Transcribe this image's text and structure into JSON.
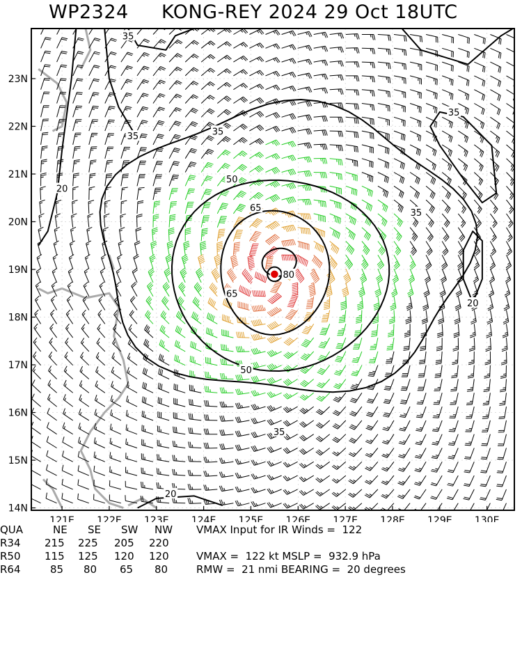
{
  "title": {
    "storm_id": "WP2324",
    "headline": "KONG-REY 2024 29 Oct 18UTC"
  },
  "map": {
    "lat_labels": [
      "14N",
      "15N",
      "16N",
      "17N",
      "18N",
      "19N",
      "20N",
      "21N",
      "22N",
      "23N"
    ],
    "lon_labels": [
      "121E",
      "122E",
      "123E",
      "124E",
      "125E",
      "126E",
      "127E",
      "128E",
      "129E",
      "130E"
    ],
    "center": {
      "lat": 18.9,
      "lon": 125.5
    },
    "wind_colors": {
      "low": "#000000",
      "gale": "#22cc22",
      "storm": "#e0a030",
      "strong": "#e07040",
      "hurricane": "#e04040",
      "center_dot": "#e00000"
    },
    "contour_labels": [
      {
        "value": "35",
        "lat": 23.9,
        "lon": 122.4
      },
      {
        "value": "35",
        "lat": 21.8,
        "lon": 122.5
      },
      {
        "value": "35",
        "lat": 22.3,
        "lon": 129.3
      },
      {
        "value": "35",
        "lat": 21.9,
        "lon": 124.3
      },
      {
        "value": "35",
        "lat": 20.2,
        "lon": 128.5
      },
      {
        "value": "35",
        "lat": 15.6,
        "lon": 125.6
      },
      {
        "value": "50",
        "lat": 20.9,
        "lon": 124.6
      },
      {
        "value": "50",
        "lat": 16.9,
        "lon": 124.9
      },
      {
        "value": "65",
        "lat": 20.3,
        "lon": 125.1
      },
      {
        "value": "65",
        "lat": 18.5,
        "lon": 124.6
      },
      {
        "value": "80",
        "lat": 18.9,
        "lon": 125.8
      },
      {
        "value": "20",
        "lat": 20.7,
        "lon": 121.0
      },
      {
        "value": "20",
        "lat": 18.3,
        "lon": 129.7
      },
      {
        "value": "20",
        "lat": 14.3,
        "lon": 123.3
      }
    ]
  },
  "stats": {
    "header": [
      "QUA",
      "NE",
      "SE",
      "SW",
      "NW"
    ],
    "rows": [
      {
        "label": "R34",
        "values": [
          "215",
          "225",
          "205",
          "220"
        ]
      },
      {
        "label": "R50",
        "values": [
          "115",
          "125",
          "120",
          "120"
        ]
      },
      {
        "label": "R64",
        "values": [
          "85",
          "80",
          "65",
          "80"
        ]
      }
    ],
    "vmax_ir": "VMAX Input for IR Winds =  122",
    "vmax_line": "VMAX =  122 kt MSLP =  932.9 hPa",
    "rmw_line": "RMW =  21 nmi BEARING =  20 degrees"
  }
}
